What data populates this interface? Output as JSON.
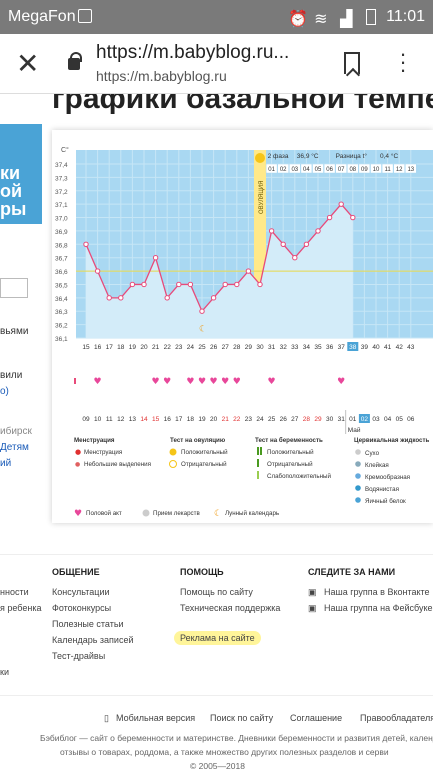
{
  "status": {
    "carrier": "MegaFon",
    "time": "11:01"
  },
  "urlbar": {
    "url": "https://m.babyblog.ru...",
    "host": "https://m.babyblog.ru"
  },
  "heading": "графики базальной температуры",
  "left": {
    "banner": "ки\nой\nры",
    "t1": "вьями",
    "t2": "вили",
    "t3": "о)",
    "t4": "ибирск",
    "t5": "Детям",
    "t6": "ий"
  },
  "chart": {
    "unit": "C°",
    "phase": "2 фаза",
    "phase_t": "36,9 °C",
    "diff": "Разница t°",
    "diff_v": "0,4 °C",
    "ovulation": "ОВУЛЯЦИЯ",
    "cycle_days": [
      "15",
      "16",
      "17",
      "18",
      "19",
      "20",
      "21",
      "22",
      "23",
      "24",
      "25",
      "26",
      "27",
      "28",
      "29",
      "30",
      "31",
      "32",
      "33",
      "34",
      "35",
      "36",
      "37",
      "38",
      "39",
      "40",
      "41",
      "42",
      "43"
    ],
    "date_days": [
      "09",
      "10",
      "11",
      "12",
      "13",
      "14",
      "15",
      "16",
      "17",
      "18",
      "19",
      "20",
      "21",
      "22",
      "23",
      "24",
      "25",
      "26",
      "27",
      "28",
      "29",
      "30",
      "31",
      "01",
      "02",
      "03",
      "04",
      "05",
      "06"
    ],
    "month": "Май",
    "phase2_days": [
      "01",
      "02",
      "03",
      "04",
      "05",
      "06",
      "07",
      "08",
      "09",
      "10",
      "11",
      "12",
      "13"
    ],
    "yticks": [
      "37,4",
      "37,3",
      "37,2",
      "37,1",
      "37,0",
      "36,9",
      "36,8",
      "36,7",
      "36,6",
      "36,5",
      "36,4",
      "36,3",
      "36,2",
      "36,1"
    ],
    "temps": [
      36.8,
      36.6,
      36.4,
      36.4,
      36.5,
      36.5,
      36.7,
      36.4,
      36.5,
      36.5,
      36.3,
      36.4,
      36.5,
      36.5,
      36.6,
      36.5,
      36.9,
      36.8,
      36.7,
      36.8,
      36.9,
      37.0,
      37.1,
      37.0
    ],
    "legend": {
      "menstr": "Менструация",
      "menstr1": "Менструация",
      "menstr2": "Небольшие выделения",
      "ovtest": "Тест на овуляцию",
      "ov1": "Положительный",
      "ov2": "Отрицательный",
      "pregtest": "Тест на беременность",
      "pr1": "Положительный",
      "pr2": "Отрицательный",
      "pr3": "Слабоположительный",
      "mucus": "Цервикальная жидкость",
      "m1": "Сухо",
      "m2": "Клейкая",
      "m3": "Кремообразная",
      "m4": "Водянистая",
      "m5": "Яичный белок",
      "act": "Половой акт",
      "med": "Прием лекарств",
      "moon": "Лунный календарь"
    }
  },
  "footer": {
    "col1": {
      "title": "ОБЩЕНИЕ",
      "items": [
        "Консультации",
        "Фотоконкурсы",
        "Полезные статьи",
        "Календарь записей",
        "Тест-драйвы"
      ]
    },
    "col2": {
      "title": "ПОМОЩЬ",
      "items": [
        "Помощь по сайту",
        "Техническая поддержка",
        "Реклама на сайте"
      ]
    },
    "col3": {
      "title": "СЛЕДИТЕ ЗА НАМИ",
      "items": [
        "Наша группа в Вконтакте",
        "Наша группа на Фейсбуке"
      ]
    },
    "left": [
      "нности",
      "я ребенка",
      "ки"
    ],
    "bottom": [
      "Мобильная версия",
      "Поиск по сайту",
      "Соглашение",
      "Правообладателям"
    ],
    "about": "Бэбиблог — сайт о беременности и материнстве. Дневники беременности и развития детей, календарь",
    "about2": "отзывы о товарах, роддома, а также множество других полезных разделов и серви",
    "copyright": "© 2005—2018"
  }
}
